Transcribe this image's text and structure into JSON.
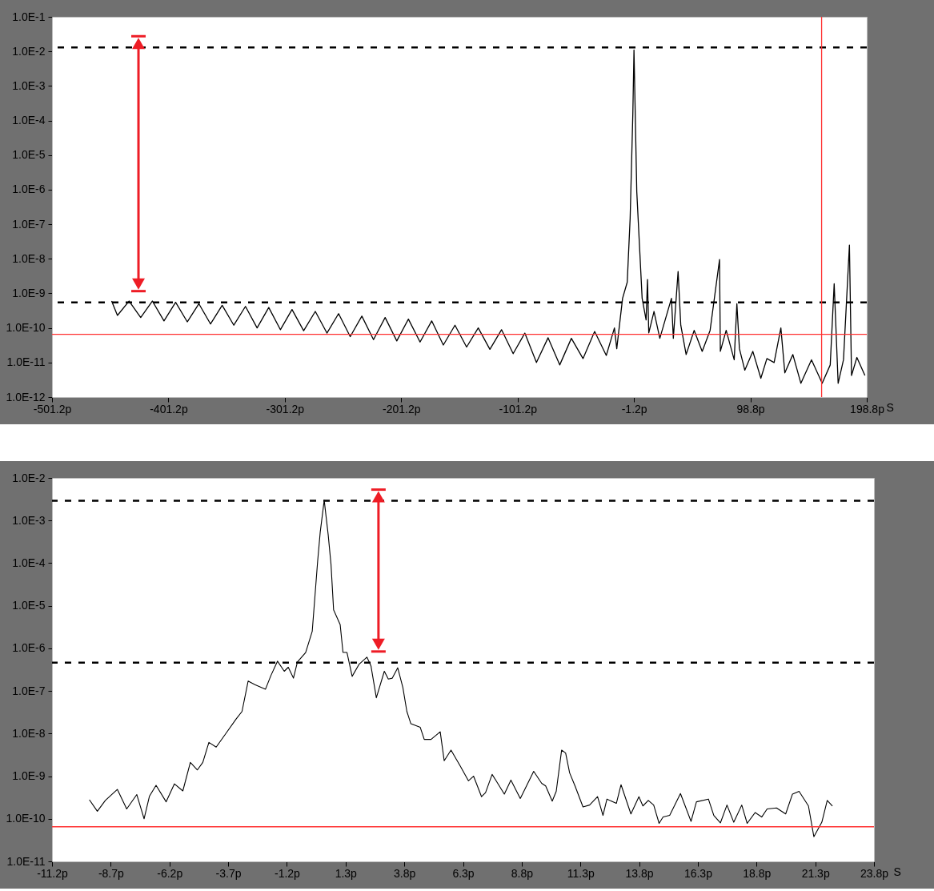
{
  "chart_data": [
    {
      "type": "line",
      "xlabel": "S",
      "log": "y",
      "xlim": [
        -501.2,
        198.8
      ],
      "ylim": [
        1e-12,
        0.1
      ],
      "xticks": [
        {
          "value": -501.2,
          "label": "-501.2p"
        },
        {
          "value": -401.2,
          "label": "-401.2p"
        },
        {
          "value": -301.2,
          "label": "-301.2p"
        },
        {
          "value": -201.2,
          "label": "-201.2p"
        },
        {
          "value": -101.2,
          "label": "-101.2p"
        },
        {
          "value": -1.2,
          "label": "-1.2p"
        },
        {
          "value": 98.8,
          "label": "98.8p"
        },
        {
          "value": 198.8,
          "label": "198.8p"
        }
      ],
      "yticks": [
        {
          "value": 1e-12,
          "label": "1.0E-12"
        },
        {
          "value": 1e-11,
          "label": "1.0E-11"
        },
        {
          "value": 1e-10,
          "label": "1.0E-10"
        },
        {
          "value": 1e-09,
          "label": "1.0E-9"
        },
        {
          "value": 1e-08,
          "label": "1.0E-8"
        },
        {
          "value": 1e-07,
          "label": "1.0E-7"
        },
        {
          "value": 1e-06,
          "label": "1.0E-6"
        },
        {
          "value": 1e-05,
          "label": "1.0E-5"
        },
        {
          "value": 0.0001,
          "label": "1.0E-4"
        },
        {
          "value": 0.001,
          "label": "1.0E-3"
        },
        {
          "value": 0.01,
          "label": "1.0E-2"
        },
        {
          "value": 0.1,
          "label": "1.0E-1"
        }
      ],
      "series": [
        {
          "color": "#000000",
          "x": [
            -450,
            -445,
            -435,
            -425,
            -415,
            -405,
            -395,
            -385,
            -375,
            -365,
            -355,
            -345,
            -335,
            -325,
            -315,
            -305,
            -295,
            -285,
            -275,
            -265,
            -255,
            -245,
            -235,
            -225,
            -215,
            -205,
            -195,
            -185,
            -175,
            -165,
            -155,
            -145,
            -135,
            -125,
            -115,
            -105,
            -95,
            -85,
            -75,
            -65,
            -55,
            -45,
            -35,
            -25,
            -18,
            -16,
            -11,
            -7,
            -4.5,
            -2.2,
            -1.2,
            1.2,
            3.5,
            5.8,
            9.2,
            10.4,
            11.5,
            16,
            21,
            31,
            32.6,
            36.7,
            39,
            43.6,
            50.5,
            57.4,
            64.2,
            72.3,
            73,
            78,
            84.9,
            87.2,
            89.4,
            94,
            100.9,
            107.8,
            113,
            119.2,
            125,
            128.4,
            135.3,
            142.2,
            151.3,
            160.5,
            167.4,
            170.8,
            174.2,
            178.8,
            183.9,
            185.7,
            190.3,
            197.2
          ],
          "values": [
            6e-10,
            2.3e-10,
            6e-10,
            2e-10,
            6e-10,
            1.6e-10,
            5.5e-10,
            1.5e-10,
            5e-10,
            1.3e-10,
            4.5e-10,
            1.2e-10,
            4.2e-10,
            1e-10,
            3.9e-10,
            8.9e-11,
            3.4e-10,
            8.3e-11,
            3e-10,
            7.1e-11,
            2.6e-10,
            5.6e-11,
            2.2e-10,
            4.6e-11,
            2e-10,
            4.2e-11,
            1.8e-10,
            3.9e-11,
            1.6e-10,
            3.2e-11,
            1.2e-10,
            2.8e-11,
            1e-10,
            2.4e-11,
            8.9e-11,
            1.8e-11,
            7.1e-11,
            1e-11,
            5.2e-11,
            8.5e-12,
            5e-11,
            1.3e-11,
            7.9e-11,
            1.6e-11,
            1e-10,
            2.5e-11,
            7.2e-10,
            2.1e-09,
            1.5e-07,
            0.00015,
            0.011,
            8.7e-07,
            2.5e-08,
            7.2e-10,
            1.7e-10,
            2.5e-09,
            7.2e-11,
            3e-10,
            5e-11,
            7.2e-10,
            5e-11,
            4.3e-09,
            1.2e-10,
            1.7e-11,
            8.5e-11,
            2.1e-11,
            8.5e-11,
            9.5e-09,
            2.1e-11,
            8.5e-11,
            1.2e-11,
            5e-10,
            2.5e-11,
            6e-12,
            2.1e-11,
            3.5e-12,
            1.3e-11,
            1e-11,
            1e-10,
            5e-12,
            1.7e-11,
            2.5e-12,
            1.2e-11,
            2.5e-12,
            8.5e-12,
            1.9e-09,
            2.5e-12,
            1.2e-11,
            2.5e-08,
            4.2e-12,
            1.4e-11,
            4.2e-12
          ]
        }
      ],
      "ref_lines": [
        {
          "axis": "y",
          "value": 0.013,
          "color": "#000000",
          "line_style": "dashed"
        },
        {
          "axis": "y",
          "value": 5.5e-10,
          "color": "#000000",
          "line_style": "dashed"
        },
        {
          "axis": "y",
          "value": 6.5e-11,
          "color": "#ff3030",
          "line_style": "solid"
        },
        {
          "axis": "x",
          "value": 160,
          "color": "#ff3030",
          "line_style": "solid"
        }
      ]
    },
    {
      "type": "line",
      "xlabel": "S",
      "log": "y",
      "xlim": [
        -11.2,
        23.8
      ],
      "ylim": [
        1e-11,
        0.01
      ],
      "xticks": [
        {
          "value": -11.2,
          "label": "-11.2p"
        },
        {
          "value": -8.7,
          "label": "-8.7p"
        },
        {
          "value": -6.2,
          "label": "-6.2p"
        },
        {
          "value": -3.7,
          "label": "-3.7p"
        },
        {
          "value": -1.2,
          "label": "-1.2p"
        },
        {
          "value": 1.3,
          "label": "1.3p"
        },
        {
          "value": 3.8,
          "label": "3.8p"
        },
        {
          "value": 6.3,
          "label": "6.3p"
        },
        {
          "value": 8.8,
          "label": "8.8p"
        },
        {
          "value": 11.3,
          "label": "11.3p"
        },
        {
          "value": 13.8,
          "label": "13.8p"
        },
        {
          "value": 16.3,
          "label": "16.3p"
        },
        {
          "value": 18.8,
          "label": "18.8p"
        },
        {
          "value": 21.3,
          "label": "21.3p"
        },
        {
          "value": 23.8,
          "label": "23.8p"
        }
      ],
      "yticks": [
        {
          "value": 1e-11,
          "label": "1.0E-11"
        },
        {
          "value": 1e-10,
          "label": "1.0E-10"
        },
        {
          "value": 1e-09,
          "label": "1.0E-9"
        },
        {
          "value": 1e-08,
          "label": "1.0E-8"
        },
        {
          "value": 1e-07,
          "label": "1.0E-7"
        },
        {
          "value": 1e-06,
          "label": "1.0E-6"
        },
        {
          "value": 1e-05,
          "label": "1.0E-5"
        },
        {
          "value": 0.0001,
          "label": "1.0E-4"
        },
        {
          "value": 0.001,
          "label": "1.0E-3"
        },
        {
          "value": 0.01,
          "label": "1.0E-2"
        }
      ],
      "series": [
        {
          "color": "#000000",
          "x": [
            -9.61,
            -9.27,
            -8.93,
            -8.42,
            -8.02,
            -7.59,
            -7.28,
            -7.05,
            -6.77,
            -6.34,
            -5.99,
            -5.63,
            -5.31,
            -5.01,
            -4.78,
            -4.52,
            -4.21,
            -3.81,
            -3.36,
            -3.11,
            -2.85,
            -2.56,
            -2.11,
            -1.88,
            -1.6,
            -1.31,
            -1.14,
            -0.92,
            -0.75,
            -0.4,
            -0.12,
            0.11,
            0.22,
            0.39,
            0.56,
            0.68,
            0.79,
            1.07,
            1.19,
            1.36,
            1.58,
            1.87,
            2.21,
            2.38,
            2.61,
            2.95,
            3.12,
            3.29,
            3.52,
            3.74,
            3.91,
            4.08,
            4.48,
            4.65,
            4.94,
            5.33,
            5.5,
            5.79,
            6.19,
            6.53,
            6.75,
            7.09,
            7.26,
            7.54,
            7.71,
            8.06,
            8.34,
            8.74,
            9.31,
            9.65,
            9.82,
            10.1,
            10.27,
            10.5,
            10.67,
            10.84,
            11.07,
            11.41,
            11.69,
            12.03,
            12.26,
            12.43,
            12.83,
            13.03,
            13.45,
            13.79,
            13.96,
            14.19,
            14.42,
            14.65,
            14.82,
            15.1,
            15.56,
            16.01,
            16.24,
            16.75,
            16.98,
            17.26,
            17.54,
            17.83,
            18.17,
            18.4,
            18.74,
            19.02,
            19.25,
            19.65,
            20.04,
            20.33,
            20.61,
            21.01,
            21.24,
            21.58,
            21.81,
            22.03
          ],
          "values": [
            2.8e-10,
            1.5e-10,
            2.7e-10,
            4.9e-10,
            1.7e-10,
            3.7e-10,
            1e-10,
            3.4e-10,
            6.1e-10,
            2.5e-10,
            6.6e-10,
            4.5e-10,
            2.1e-09,
            1.4e-09,
            2.1e-09,
            6.2e-09,
            4.8e-09,
            9.8e-09,
            2.2e-08,
            3.3e-08,
            1.7e-07,
            1.4e-07,
            1.1e-07,
            2.3e-07,
            5e-07,
            2.9e-07,
            3.6e-07,
            2e-07,
            4.8e-07,
            8e-07,
            2.5e-06,
            0.00011,
            0.00053,
            0.003,
            0.00046,
            9.3e-05,
            8e-06,
            3.6e-06,
            8e-07,
            8e-07,
            2.2e-07,
            4.2e-07,
            6.2e-07,
            3.9e-07,
            6.9e-08,
            2.9e-07,
            1.9e-07,
            2e-07,
            3.5e-07,
            1.2e-07,
            3.3e-08,
            1.7e-08,
            1.4e-08,
            7.3e-09,
            7.3e-09,
            1.1e-08,
            2.3e-09,
            4.1e-09,
            1.7e-09,
            7.8e-10,
            1e-09,
            3.3e-10,
            4.1e-10,
            1.1e-09,
            7.8e-10,
            3.8e-10,
            8.1e-10,
            3e-10,
            1.3e-09,
            6.8e-10,
            5.9e-10,
            2.6e-10,
            4.4e-10,
            4.1e-09,
            3.5e-09,
            1.2e-09,
            5.9e-10,
            1.9e-10,
            2.1e-10,
            3.3e-10,
            1.2e-10,
            2.9e-10,
            2.3e-10,
            6.3e-10,
            1.3e-10,
            3.3e-10,
            2e-10,
            2.7e-10,
            2.1e-10,
            7.8e-11,
            1.1e-10,
            1.2e-10,
            3.9e-10,
            8.7e-11,
            2.5e-10,
            2.9e-10,
            1.2e-10,
            8e-11,
            2.1e-10,
            8.3e-11,
            2.1e-10,
            7.8e-11,
            1.4e-10,
            1.1e-10,
            1.7e-10,
            1.8e-10,
            1.3e-10,
            3.8e-10,
            4.4e-10,
            2e-10,
            3.8e-11,
            8.3e-11,
            2.7e-10,
            2e-10
          ]
        }
      ],
      "ref_lines": [
        {
          "axis": "y",
          "value": 0.0029,
          "color": "#000000",
          "line_style": "dashed"
        },
        {
          "axis": "y",
          "value": 4.6e-07,
          "color": "#000000",
          "line_style": "dashed"
        },
        {
          "axis": "y",
          "value": 6.5e-11,
          "color": "#ff3030",
          "line_style": "solid"
        }
      ]
    }
  ]
}
